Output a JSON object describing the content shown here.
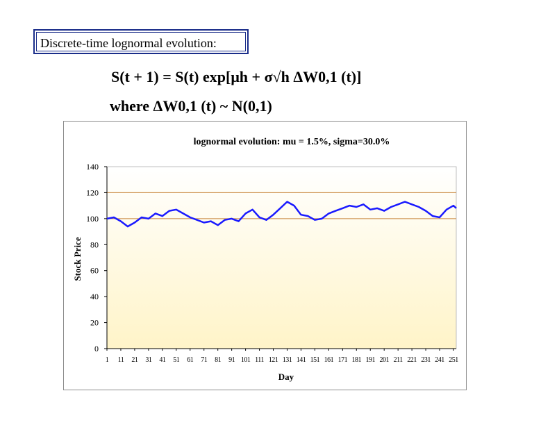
{
  "slide": {
    "heading": "Discrete-time lognormal evolution:",
    "formula_line1": "S(t + 1) = S(t) exp[μh + σ√h ΔW0,1 (t)]",
    "formula_line2": "where  ΔW0,1 (t) ~ N(0,1)"
  },
  "colors": {
    "series": "#1a1aff",
    "grid": "#c8843a",
    "plot_bg_top": "#ffffff",
    "plot_bg_bottom": "#fff4c8",
    "frame": "#8a8a8a"
  },
  "chart_data": {
    "type": "line",
    "title": "lognormal evolution:  mu = 1.5%,  sigma=30.0%",
    "xlabel": "Day",
    "ylabel": "Stock Price",
    "ylim": [
      0,
      140
    ],
    "yticks": [
      0,
      20,
      40,
      60,
      80,
      100,
      120,
      140
    ],
    "xlim": [
      1,
      253
    ],
    "xticks": [
      1,
      11,
      21,
      31,
      41,
      51,
      61,
      71,
      81,
      91,
      101,
      111,
      121,
      131,
      141,
      151,
      161,
      171,
      181,
      191,
      201,
      211,
      221,
      231,
      241,
      251
    ],
    "grid": "horizontal at 100 and 120",
    "legend": "none",
    "series": [
      {
        "x": [
          1,
          6,
          11,
          16,
          21,
          26,
          31,
          36,
          41,
          46,
          51,
          56,
          61,
          66,
          71,
          76,
          81,
          86,
          91,
          96,
          101,
          106,
          111,
          116,
          121,
          126,
          131,
          136,
          141,
          146,
          151,
          156,
          161,
          166,
          171,
          176,
          181,
          186,
          191,
          196,
          201,
          206,
          211,
          216,
          221,
          226,
          231,
          236,
          241,
          246,
          251,
          253
        ],
        "y": [
          100,
          101,
          98,
          94,
          97,
          101,
          100,
          104,
          102,
          106,
          107,
          104,
          101,
          99,
          97,
          98,
          95,
          99,
          100,
          98,
          104,
          107,
          101,
          99,
          103,
          108,
          113,
          110,
          103,
          102,
          99,
          100,
          104,
          106,
          108,
          110,
          109,
          111,
          107,
          108,
          106,
          109,
          111,
          113,
          111,
          109,
          106,
          102,
          101,
          107,
          110,
          108
        ]
      }
    ]
  }
}
